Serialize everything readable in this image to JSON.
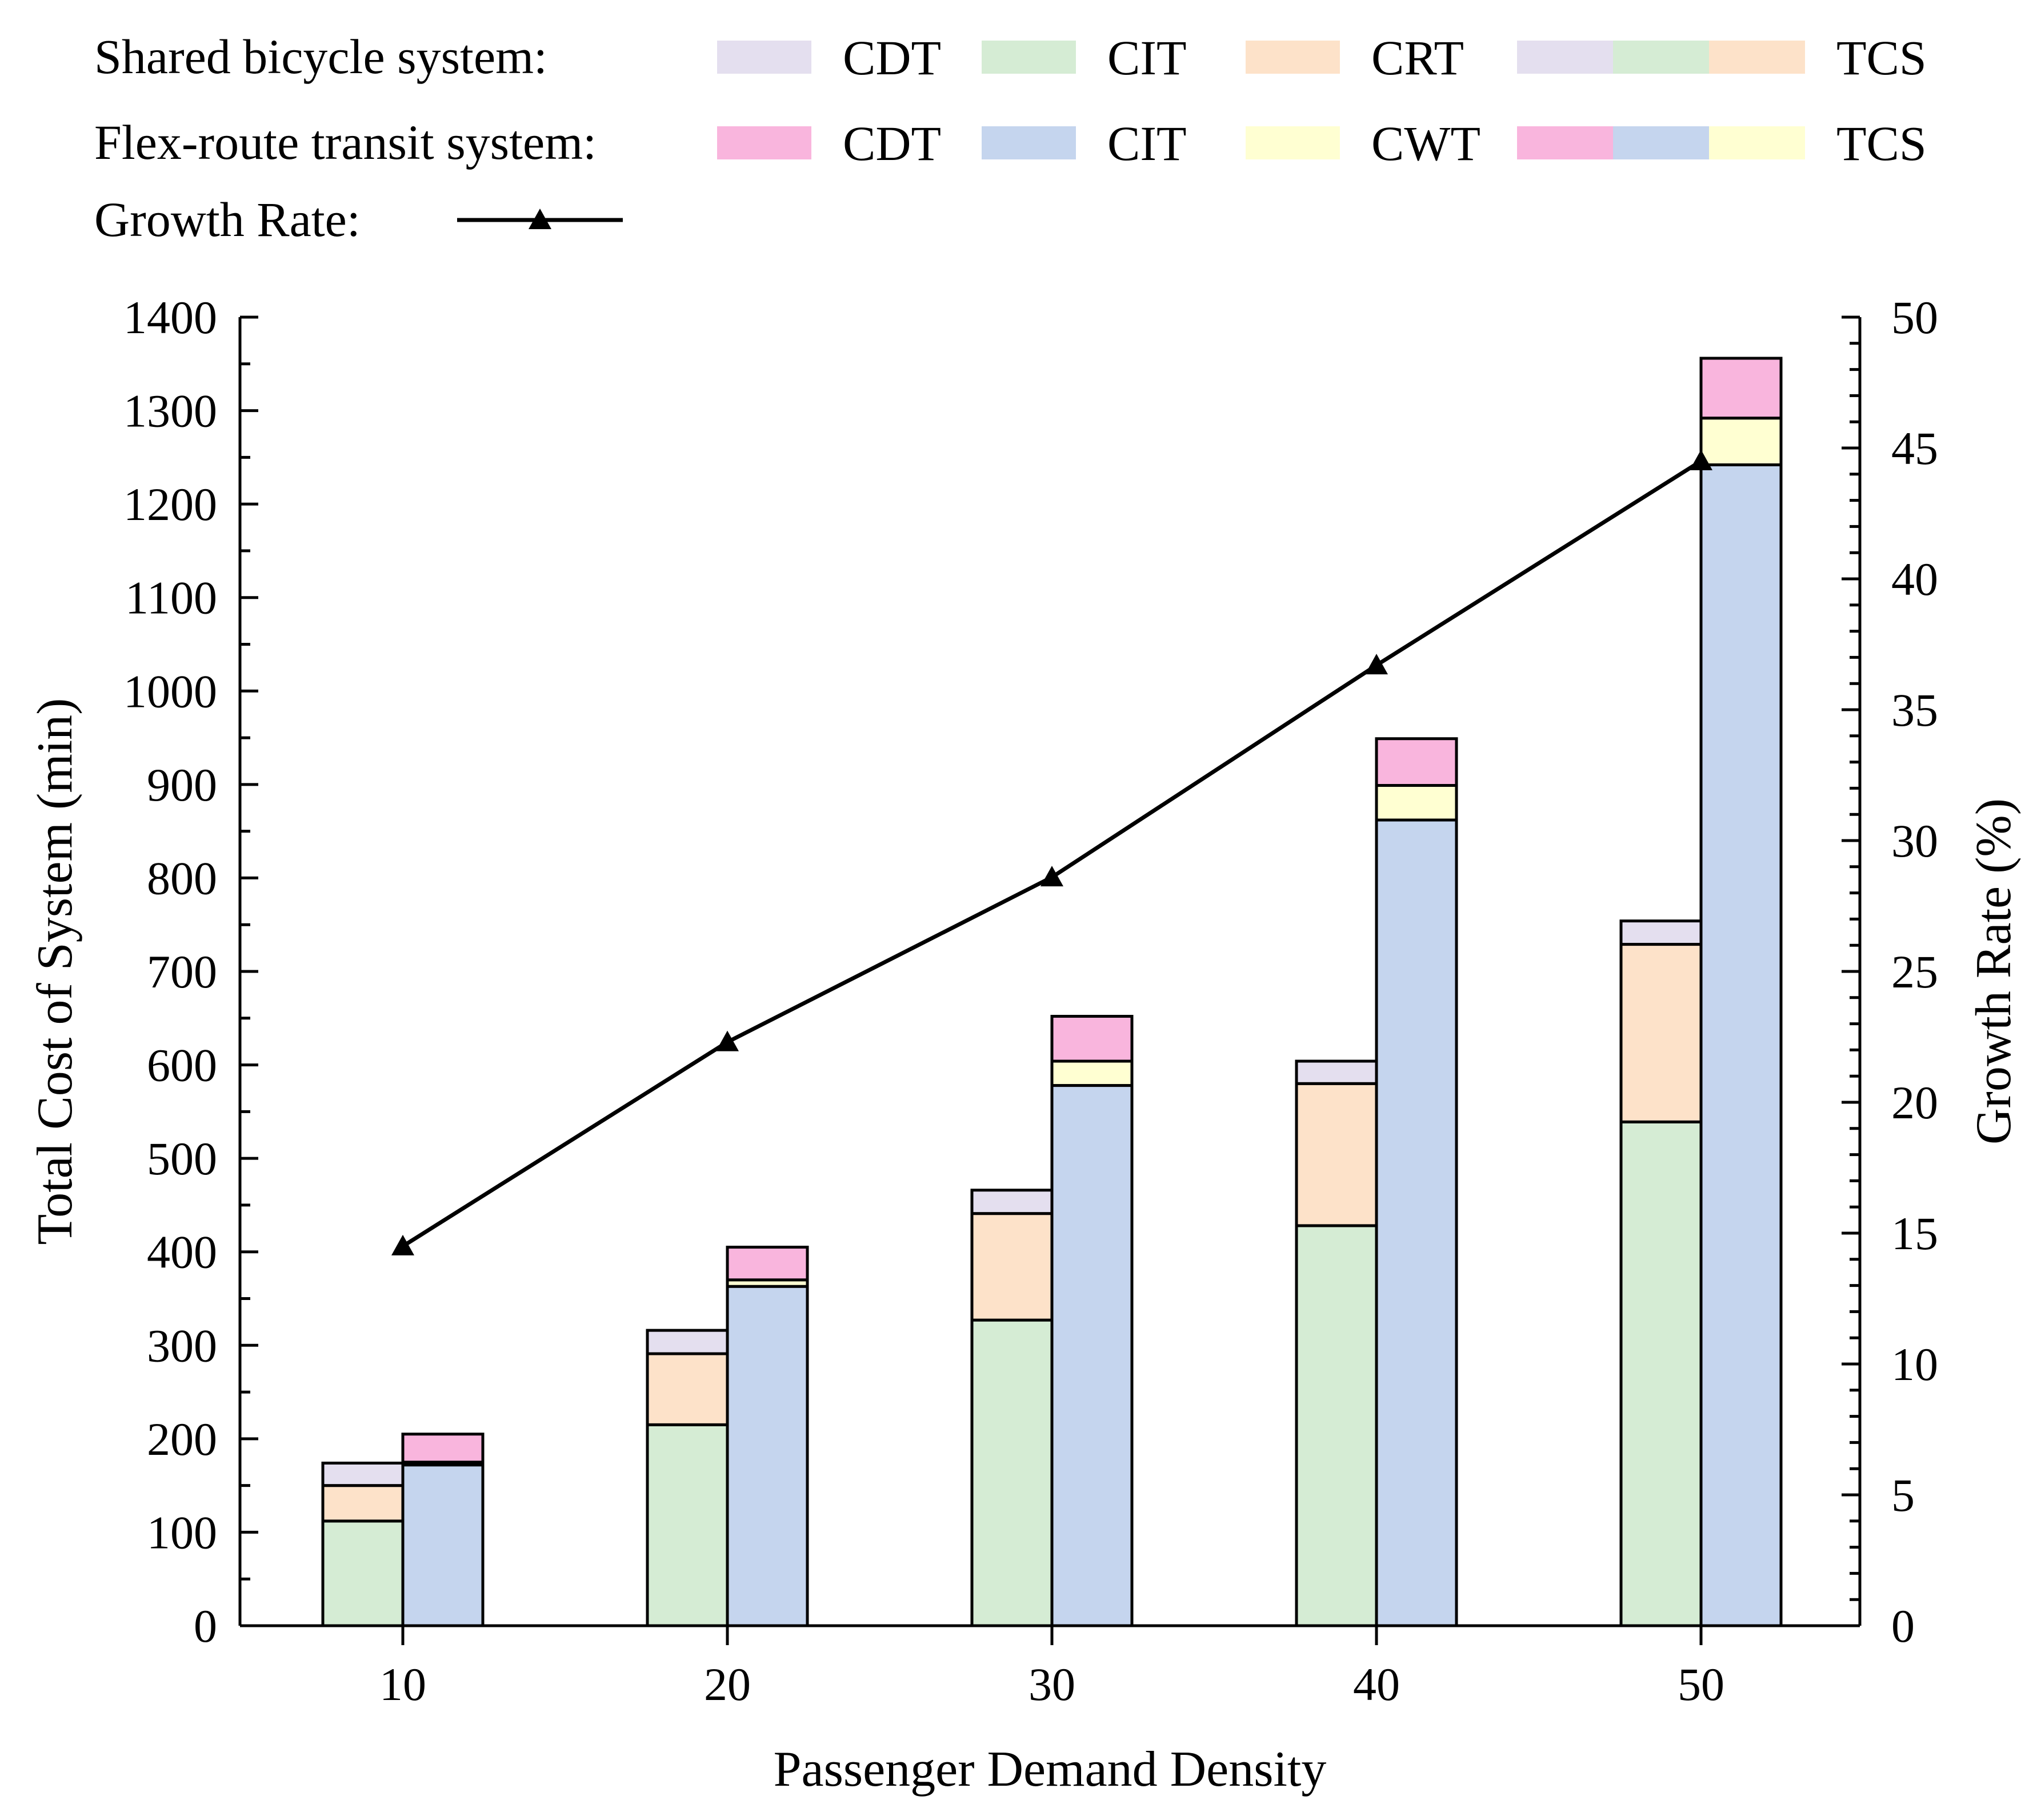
{
  "chart_data": {
    "type": "bar",
    "subtype": "stacked-grouped-bar-with-line",
    "xlabel": "Passenger Demand Density",
    "ylabel": "Total Cost of System (min)",
    "y2label": "Growth Rate (%)",
    "ylim": [
      0,
      1400
    ],
    "y2lim": [
      0,
      50
    ],
    "categories": [
      "10",
      "20",
      "30",
      "40",
      "50"
    ],
    "y_ticks": [
      "0",
      "100",
      "200",
      "300",
      "400",
      "500",
      "600",
      "700",
      "800",
      "900",
      "1000",
      "1100",
      "1200",
      "1300",
      "1400"
    ],
    "y2_ticks": [
      "0",
      "5",
      "10",
      "15",
      "20",
      "25",
      "30",
      "35",
      "40",
      "45",
      "50"
    ],
    "legend": {
      "placement": "top",
      "groups": [
        {
          "label": "Shared bicycle system:",
          "items": [
            {
              "label": "CDT",
              "colors": [
                "#e4dfef"
              ]
            },
            {
              "label": "CIT",
              "colors": [
                "#d5ecd4"
              ]
            },
            {
              "label": "CRT",
              "colors": [
                "#fde2c9"
              ]
            },
            {
              "label": "TCS",
              "colors": [
                "#e4dfef",
                "#d5ecd4",
                "#fde2c9"
              ]
            }
          ]
        },
        {
          "label": "Flex-route transit system:",
          "items": [
            {
              "label": "CDT",
              "colors": [
                "#f9b5dd"
              ]
            },
            {
              "label": "CIT",
              "colors": [
                "#c5d5ee"
              ]
            },
            {
              "label": "CWT",
              "colors": [
                "#ffffd2"
              ]
            },
            {
              "label": "TCS",
              "colors": [
                "#f9b5dd",
                "#c5d5ee",
                "#ffffd2"
              ]
            }
          ]
        },
        {
          "label": "Growth Rate:",
          "items": [
            {
              "label": "",
              "line": true,
              "color": "#000000"
            }
          ]
        }
      ]
    },
    "groups": [
      {
        "name": "Shared bicycle system",
        "series": [
          {
            "name": "CIT",
            "color": "#d5ecd4",
            "values": [
              112,
              215,
              327,
              428,
              539
            ]
          },
          {
            "name": "CRT",
            "color": "#fde2c9",
            "values": [
              38,
              76,
              114,
              152,
              190
            ]
          },
          {
            "name": "CDT",
            "color": "#e4dfef",
            "values": [
              24,
              25,
              25,
              24,
              25
            ]
          }
        ]
      },
      {
        "name": "Flex-route transit system",
        "series": [
          {
            "name": "CIT",
            "color": "#c5d5ee",
            "values": [
              172,
              363,
              578,
              862,
              1242
            ]
          },
          {
            "name": "CWT",
            "color": "#ffffd2",
            "values": [
              3,
              7,
              26,
              37,
              50
            ]
          },
          {
            "name": "CDT",
            "color": "#f9b5dd",
            "values": [
              30,
              35,
              48,
              50,
              64
            ]
          }
        ]
      }
    ],
    "line": {
      "name": "Growth Rate",
      "axis": "right",
      "color": "#000000",
      "marker": "triangle",
      "values": [
        14.5,
        22.3,
        28.6,
        36.7,
        44.5
      ]
    }
  }
}
